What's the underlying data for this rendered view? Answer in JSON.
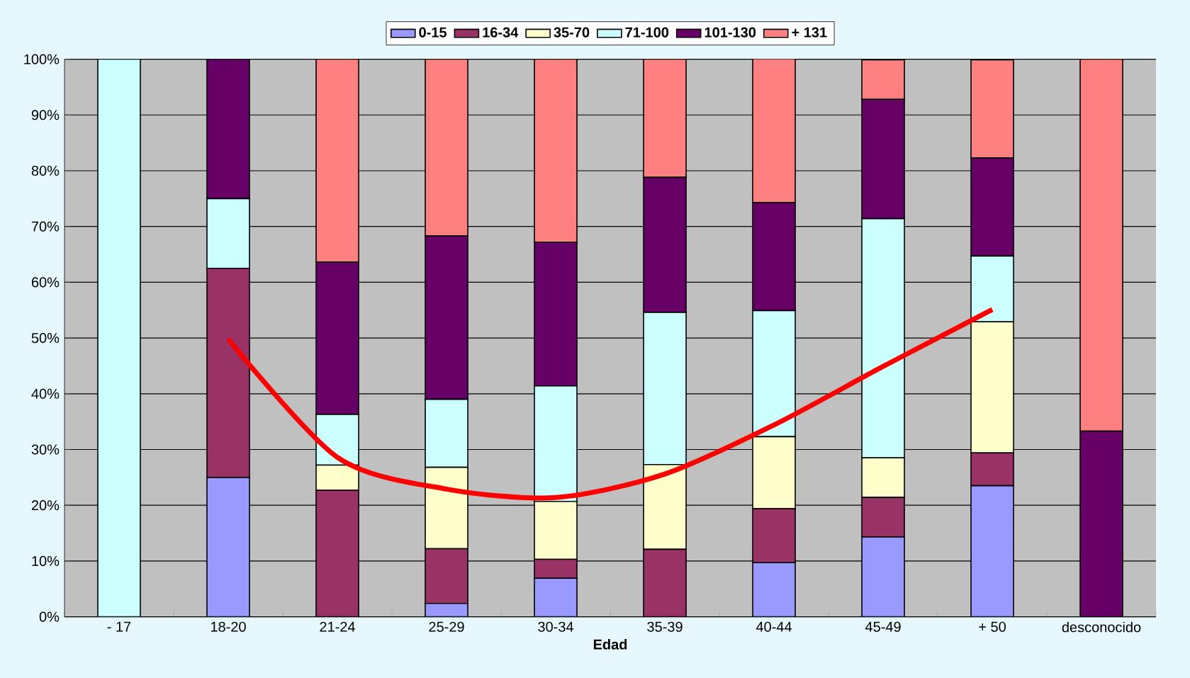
{
  "chart_data": {
    "type": "bar",
    "stacked": true,
    "xlabel": "Edad",
    "categories": [
      "- 17",
      "18-20",
      "21-24",
      "25-29",
      "30-34",
      "35-39",
      "40-44",
      "45-49",
      "+ 50",
      "desconocido"
    ],
    "ylim": [
      0,
      100
    ],
    "yticks": [
      {
        "value": 0,
        "label": "0%"
      },
      {
        "value": 10,
        "label": "10%"
      },
      {
        "value": 20,
        "label": "20%"
      },
      {
        "value": 30,
        "label": "30%"
      },
      {
        "value": 40,
        "label": "40%"
      },
      {
        "value": 50,
        "label": "50%"
      },
      {
        "value": 60,
        "label": "60%"
      },
      {
        "value": 70,
        "label": "70%"
      },
      {
        "value": 80,
        "label": "80%"
      },
      {
        "value": 90,
        "label": "90%"
      },
      {
        "value": 100,
        "label": "100%"
      }
    ],
    "grid": "y",
    "legend": "top",
    "series": [
      {
        "name": "0-15",
        "color": "#9999ff",
        "values": [
          0,
          25,
          0,
          2.4,
          6.9,
          0,
          9.7,
          14.3,
          23.5,
          0
        ]
      },
      {
        "name": "16-34",
        "color": "#993366",
        "values": [
          0,
          37.5,
          22.7,
          9.8,
          3.4,
          12.1,
          9.7,
          7.1,
          5.9,
          0
        ]
      },
      {
        "name": "35-70",
        "color": "#ffffcc",
        "values": [
          0,
          0,
          4.5,
          14.6,
          10.4,
          15.2,
          12.9,
          7.1,
          23.5,
          0
        ]
      },
      {
        "name": "71-100",
        "color": "#ccffff",
        "values": [
          100,
          12.5,
          9.1,
          12.2,
          20.7,
          27.3,
          22.6,
          42.9,
          11.8,
          0
        ]
      },
      {
        "name": "101-130",
        "color": "#660066",
        "values": [
          0,
          25,
          27.3,
          29.3,
          25.8,
          24.2,
          19.4,
          21.4,
          17.6,
          33.3
        ]
      },
      {
        "name": "+ 131",
        "color": "#ff8080",
        "values": [
          0,
          0,
          36.4,
          31.7,
          32.8,
          21.2,
          25.8,
          7.1,
          17.6,
          66.7
        ]
      },
      {
        "type": "line",
        "color": "#ff0000",
        "values": [
          null,
          49.8,
          28.6,
          22.9,
          21.4,
          25.6,
          34.4,
          44.9,
          55.1,
          null
        ]
      }
    ]
  }
}
